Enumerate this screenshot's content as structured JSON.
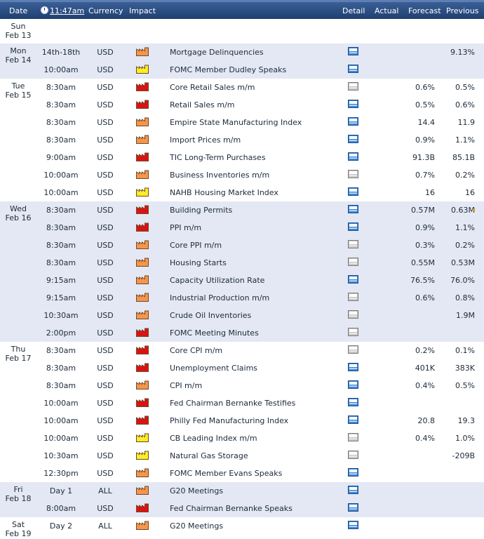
{
  "header": {
    "date": "Date",
    "time": "11:47am",
    "currency": "Currency",
    "impact": "Impact",
    "detail": "Detail",
    "actual": "Actual",
    "forecast": "Forecast",
    "previous": "Previous"
  },
  "impact_colors": {
    "high": "#dd1111",
    "medium": "#f7954a",
    "low": "#ffee22"
  },
  "days": [
    {
      "weekday": "Sun",
      "date": "Feb 13",
      "shade": "plain",
      "events": []
    },
    {
      "weekday": "Mon",
      "date": "Feb 14",
      "shade": "alt",
      "events": [
        {
          "time": "14th-18th",
          "currency": "USD",
          "impact": "medium",
          "event": "Mortgage Delinquencies",
          "detail_icon": "blue-report-icon",
          "forecast": "",
          "previous": "9.13%"
        },
        {
          "time": "10:00am",
          "currency": "USD",
          "impact": "low",
          "event": "FOMC Member Dudley Speaks",
          "detail_icon": "blue-report-icon",
          "forecast": "",
          "previous": ""
        }
      ]
    },
    {
      "weekday": "Tue",
      "date": "Feb 15",
      "shade": "plain",
      "events": [
        {
          "time": "8:30am",
          "currency": "USD",
          "impact": "high",
          "event": "Core Retail Sales m/m",
          "detail_icon": "gray-report-icon",
          "forecast": "0.6%",
          "previous": "0.5%"
        },
        {
          "time": "8:30am",
          "currency": "USD",
          "impact": "high",
          "event": "Retail Sales m/m",
          "detail_icon": "blue-report-icon",
          "forecast": "0.5%",
          "previous": "0.6%"
        },
        {
          "time": "8:30am",
          "currency": "USD",
          "impact": "medium",
          "event": "Empire State Manufacturing Index",
          "detail_icon": "blue-report-icon",
          "forecast": "14.4",
          "previous": "11.9"
        },
        {
          "time": "8:30am",
          "currency": "USD",
          "impact": "medium",
          "event": "Import Prices m/m",
          "detail_icon": "blue-report-icon",
          "forecast": "0.9%",
          "previous": "1.1%"
        },
        {
          "time": "9:00am",
          "currency": "USD",
          "impact": "high",
          "event": "TIC Long-Term Purchases",
          "detail_icon": "blue-report-icon",
          "forecast": "91.3B",
          "previous": "85.1B"
        },
        {
          "time": "10:00am",
          "currency": "USD",
          "impact": "medium",
          "event": "Business Inventories m/m",
          "detail_icon": "gray-report-icon",
          "forecast": "0.7%",
          "previous": "0.2%"
        },
        {
          "time": "10:00am",
          "currency": "USD",
          "impact": "low",
          "event": "NAHB Housing Market Index",
          "detail_icon": "blue-report-icon",
          "forecast": "16",
          "previous": "16"
        }
      ]
    },
    {
      "weekday": "Wed",
      "date": "Feb 16",
      "shade": "alt",
      "events": [
        {
          "time": "8:30am",
          "currency": "USD",
          "impact": "high",
          "event": "Building Permits",
          "detail_icon": "blue-report-icon",
          "forecast": "0.57M",
          "previous": "0.63M",
          "revised": true
        },
        {
          "time": "8:30am",
          "currency": "USD",
          "impact": "high",
          "event": "PPI m/m",
          "detail_icon": "blue-report-icon",
          "forecast": "0.9%",
          "previous": "1.1%"
        },
        {
          "time": "8:30am",
          "currency": "USD",
          "impact": "medium",
          "event": "Core PPI m/m",
          "detail_icon": "gray-report-icon",
          "forecast": "0.3%",
          "previous": "0.2%"
        },
        {
          "time": "8:30am",
          "currency": "USD",
          "impact": "medium",
          "event": "Housing Starts",
          "detail_icon": "gray-report-icon",
          "forecast": "0.55M",
          "previous": "0.53M"
        },
        {
          "time": "9:15am",
          "currency": "USD",
          "impact": "medium",
          "event": "Capacity Utilization Rate",
          "detail_icon": "blue-report-icon",
          "forecast": "76.5%",
          "previous": "76.0%"
        },
        {
          "time": "9:15am",
          "currency": "USD",
          "impact": "medium",
          "event": "Industrial Production m/m",
          "detail_icon": "gray-report-icon",
          "forecast": "0.6%",
          "previous": "0.8%"
        },
        {
          "time": "10:30am",
          "currency": "USD",
          "impact": "medium",
          "event": "Crude Oil Inventories",
          "detail_icon": "gray-report-icon",
          "forecast": "",
          "previous": "1.9M"
        },
        {
          "time": "2:00pm",
          "currency": "USD",
          "impact": "high",
          "event": "FOMC Meeting Minutes",
          "detail_icon": "gray-report-icon",
          "forecast": "",
          "previous": ""
        }
      ]
    },
    {
      "weekday": "Thu",
      "date": "Feb 17",
      "shade": "plain",
      "events": [
        {
          "time": "8:30am",
          "currency": "USD",
          "impact": "high",
          "event": "Core CPI m/m",
          "detail_icon": "gray-report-icon",
          "forecast": "0.2%",
          "previous": "0.1%"
        },
        {
          "time": "8:30am",
          "currency": "USD",
          "impact": "high",
          "event": "Unemployment Claims",
          "detail_icon": "blue-report-icon",
          "forecast": "401K",
          "previous": "383K"
        },
        {
          "time": "8:30am",
          "currency": "USD",
          "impact": "medium",
          "event": "CPI m/m",
          "detail_icon": "blue-report-icon",
          "forecast": "0.4%",
          "previous": "0.5%"
        },
        {
          "time": "10:00am",
          "currency": "USD",
          "impact": "high",
          "event": "Fed Chairman Bernanke Testifies",
          "detail_icon": "blue-report-icon",
          "forecast": "",
          "previous": ""
        },
        {
          "time": "10:00am",
          "currency": "USD",
          "impact": "high",
          "event": "Philly Fed Manufacturing Index",
          "detail_icon": "blue-report-icon",
          "forecast": "20.8",
          "previous": "19.3"
        },
        {
          "time": "10:00am",
          "currency": "USD",
          "impact": "low",
          "event": "CB Leading Index m/m",
          "detail_icon": "gray-report-icon",
          "forecast": "0.4%",
          "previous": "1.0%"
        },
        {
          "time": "10:30am",
          "currency": "USD",
          "impact": "low",
          "event": "Natural Gas Storage",
          "detail_icon": "gray-report-icon",
          "forecast": "",
          "previous": "-209B"
        },
        {
          "time": "12:30pm",
          "currency": "USD",
          "impact": "medium",
          "event": "FOMC Member Evans Speaks",
          "detail_icon": "blue-report-icon",
          "forecast": "",
          "previous": ""
        }
      ]
    },
    {
      "weekday": "Fri",
      "date": "Feb 18",
      "shade": "alt",
      "events": [
        {
          "time": "Day 1",
          "currency": "ALL",
          "impact": "medium",
          "event": "G20 Meetings",
          "detail_icon": "blue-report-icon",
          "forecast": "",
          "previous": ""
        },
        {
          "time": "8:00am",
          "currency": "USD",
          "impact": "high",
          "event": "Fed Chairman Bernanke Speaks",
          "detail_icon": "blue-report-icon",
          "forecast": "",
          "previous": ""
        }
      ]
    },
    {
      "weekday": "Sat",
      "date": "Feb 19",
      "shade": "plain",
      "events": [
        {
          "time": "Day 2",
          "currency": "ALL",
          "impact": "medium",
          "event": "G20 Meetings",
          "detail_icon": "blue-report-icon",
          "forecast": "",
          "previous": ""
        }
      ]
    }
  ]
}
